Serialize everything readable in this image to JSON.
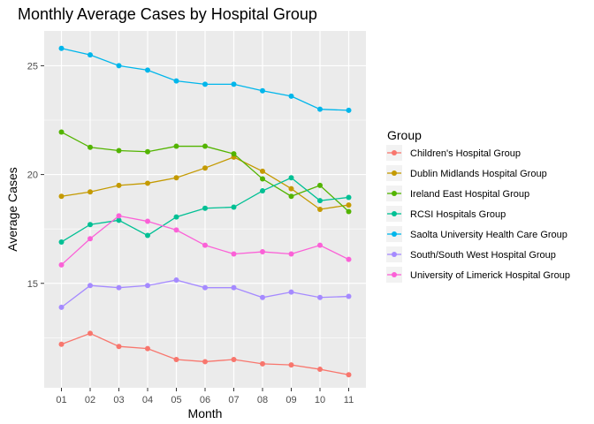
{
  "chart_data": {
    "type": "line",
    "title": "Monthly Average Cases by Hospital Group",
    "xlabel": "Month",
    "ylabel": "Average Cases",
    "categories": [
      "01",
      "02",
      "03",
      "04",
      "05",
      "06",
      "07",
      "08",
      "09",
      "10",
      "11"
    ],
    "y_ticks": [
      15,
      20,
      25
    ],
    "ylim": [
      10.2,
      26.6
    ],
    "grid": true,
    "legend": {
      "title": "Group",
      "placement": "right"
    },
    "series": [
      {
        "name": "Children's Hospital Group",
        "color": "#F8766D",
        "values": [
          12.2,
          12.7,
          12.1,
          12.0,
          11.5,
          11.4,
          11.5,
          11.3,
          11.25,
          11.05,
          10.8
        ]
      },
      {
        "name": "Dublin Midlands Hospital Group",
        "color": "#C49A00",
        "values": [
          19.0,
          19.2,
          19.5,
          19.6,
          19.85,
          20.3,
          20.8,
          20.15,
          19.35,
          18.4,
          18.6
        ]
      },
      {
        "name": "Ireland East Hospital Group",
        "color": "#53B400",
        "values": [
          21.95,
          21.25,
          21.1,
          21.05,
          21.3,
          21.3,
          20.95,
          19.8,
          19.0,
          19.5,
          18.3
        ]
      },
      {
        "name": "RCSI  Hospitals Group",
        "color": "#00C094",
        "values": [
          16.9,
          17.7,
          17.9,
          17.2,
          18.05,
          18.45,
          18.5,
          19.25,
          19.85,
          18.8,
          18.95
        ]
      },
      {
        "name": "Saolta University Health Care Group",
        "color": "#00B6EB",
        "values": [
          25.8,
          25.5,
          25.0,
          24.8,
          24.3,
          24.15,
          24.15,
          23.85,
          23.6,
          23.0,
          22.95
        ]
      },
      {
        "name": "South/South West Hospital Group",
        "color": "#A58AFF",
        "values": [
          13.9,
          14.9,
          14.8,
          14.9,
          15.15,
          14.8,
          14.8,
          14.35,
          14.6,
          14.35,
          14.4
        ]
      },
      {
        "name": "University of Limerick Hospital Group",
        "color": "#FB61D7",
        "values": [
          15.85,
          17.05,
          18.1,
          17.85,
          17.45,
          16.75,
          16.35,
          16.45,
          16.35,
          16.75,
          16.1
        ]
      }
    ]
  }
}
